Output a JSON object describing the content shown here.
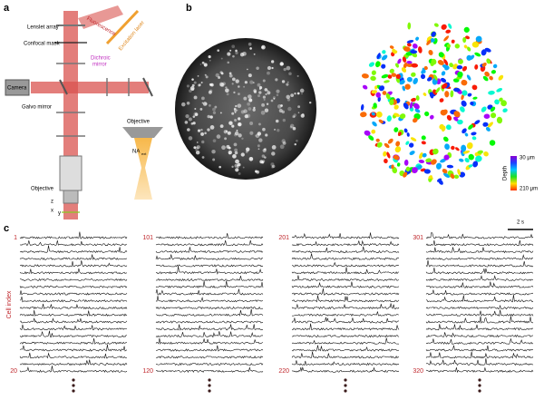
{
  "panel_a": {
    "label": "a",
    "lenslet_array": "Lenslet array",
    "confocal_mask": "Confocal mask",
    "fluorescence": "Fluorescence",
    "excitation_laser": "Excitation laser",
    "dichroic_mirror": [
      "Dichroic",
      "mirror"
    ],
    "camera": "Camera",
    "galvo_mirror": "Galvo mirror",
    "objective": "Objective",
    "inset_objective": "Objective",
    "na": "NA",
    "na_sub": "ext",
    "axes": {
      "z": "z",
      "x": "x",
      "y": "y"
    }
  },
  "panel_b": {
    "label": "b",
    "colorbar": {
      "title": "Depth",
      "top": "30 μm",
      "bottom": "210 μm"
    }
  },
  "panel_c": {
    "label": "c",
    "y_label": "Cell index",
    "scale_bar": "2 s",
    "groups": [
      {
        "first": "1",
        "last": "20"
      },
      {
        "first": "101",
        "last": "120"
      },
      {
        "first": "201",
        "last": "220"
      },
      {
        "first": "301",
        "last": "320"
      }
    ]
  }
}
